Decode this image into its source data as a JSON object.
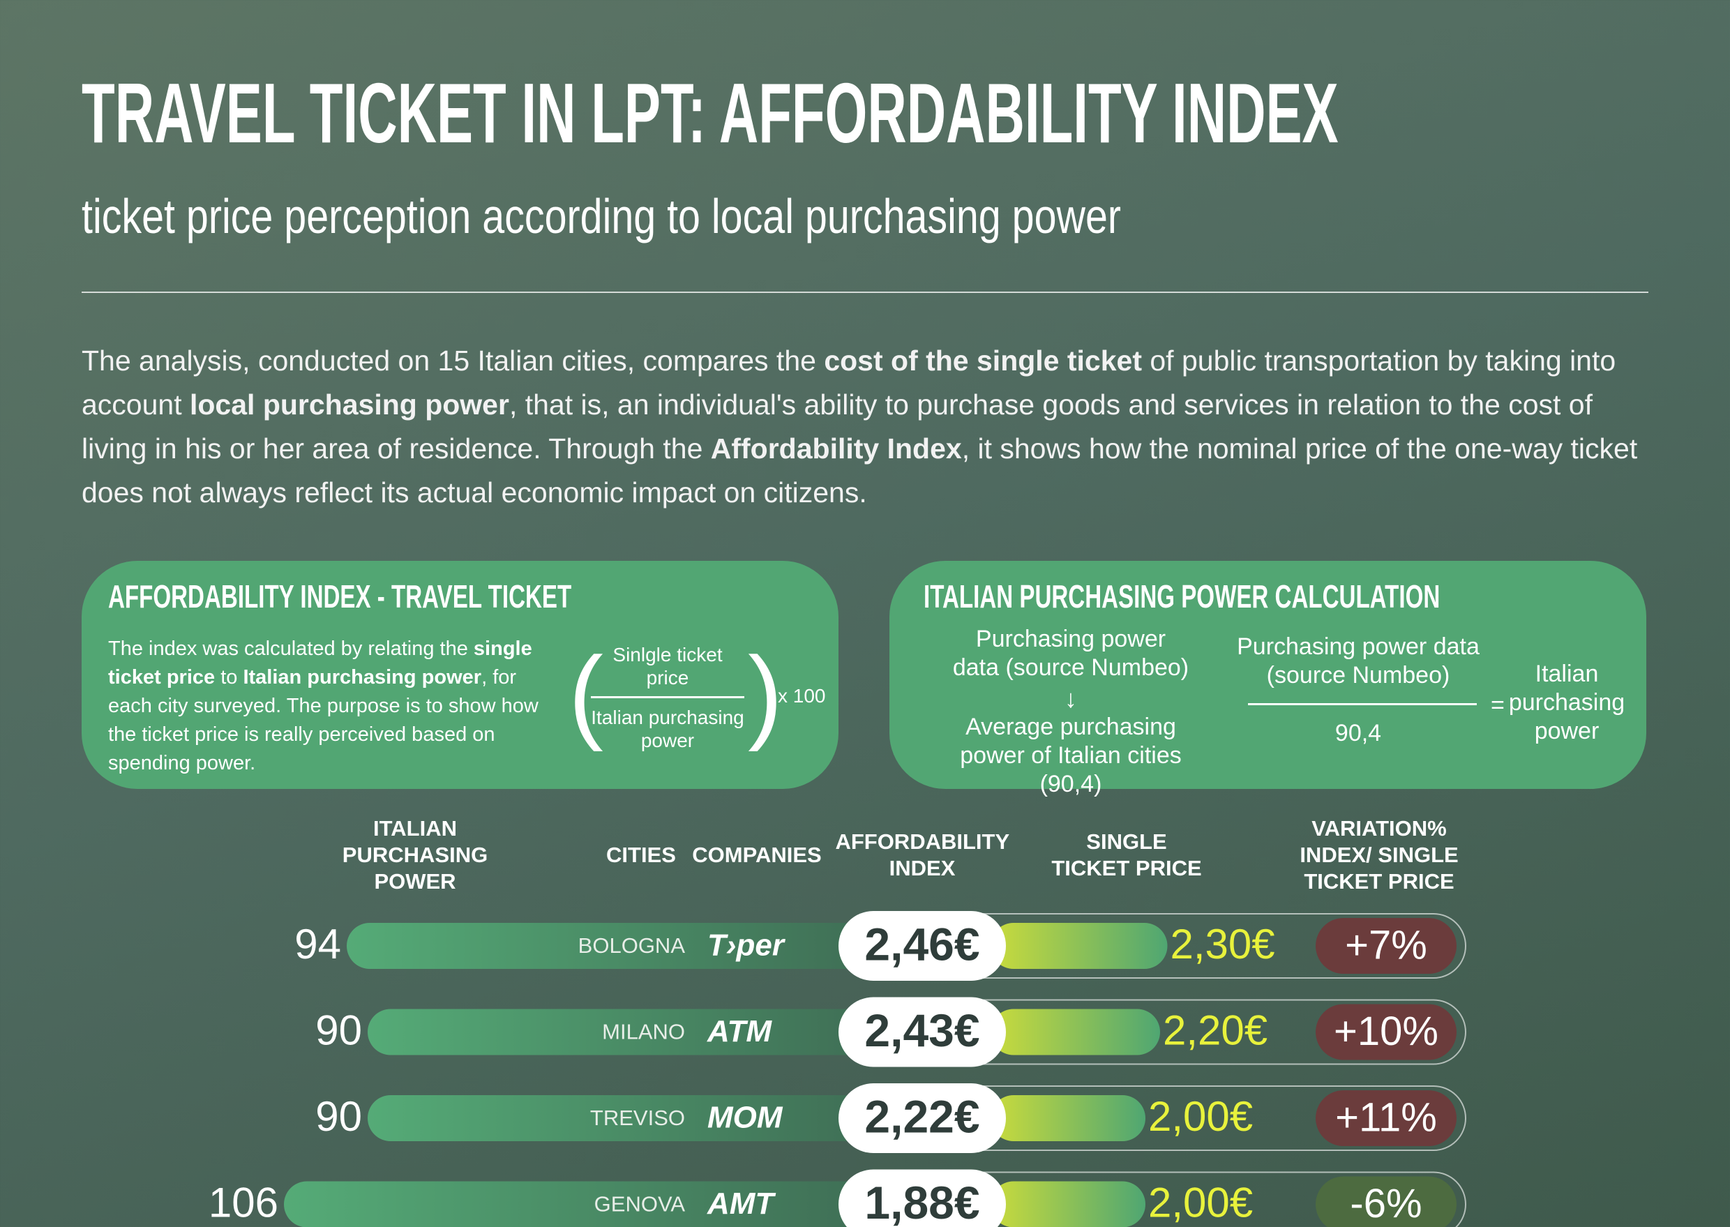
{
  "header": {
    "title": "TRAVEL TICKET IN LPT: AFFORDABILITY INDEX",
    "subtitle": "ticket price perception according to local purchasing power"
  },
  "intro": [
    {
      "text": "The analysis, conducted on 15 Italian cities, compares the ",
      "bold": false
    },
    {
      "text": "cost of the single ticket",
      "bold": true
    },
    {
      "text": " of public transportation by taking into account ",
      "bold": false
    },
    {
      "text": "local purchasing power",
      "bold": true
    },
    {
      "text": ", that is, an individual's ability to purchase goods and services in relation to the cost of living in his or her area of residence. Through the ",
      "bold": false
    },
    {
      "text": "Affordability Index",
      "bold": true
    },
    {
      "text": ", it shows how the nominal price of the one-way ticket does not always reflect its actual economic impact on citizens.",
      "bold": false
    }
  ],
  "boxes": {
    "index": {
      "title": "AFFORDABILITY INDEX - TRAVEL TICKET",
      "text": [
        {
          "text": "The index was calculated by relating the ",
          "bold": false
        },
        {
          "text": "single ticket price",
          "bold": true
        },
        {
          "text": " to ",
          "bold": false
        },
        {
          "text": "Italian purchasing power",
          "bold": true
        },
        {
          "text": ", for each city surveyed. The purpose is to show how the ticket price is really perceived based on spending power.",
          "bold": false
        }
      ],
      "numerator": "Sinlgle ticket price",
      "denominator": "Italian purchasing power",
      "multiplier": "x 100"
    },
    "power": {
      "title": "ITALIAN PURCHASING POWER CALCULATION",
      "source": "Purchasing power data (source Numbeo)",
      "average": "Average purchasing power of Italian cities (90,4)",
      "numerator": "Purchasing power data (source Numbeo)",
      "denominator": "90,4",
      "equals": "=",
      "result": "Italian purchasing power"
    }
  },
  "columns": [
    "ITALIAN PURCHASING POWER",
    "CITIES",
    "COMPANIES",
    "AFFORDABILITY INDEX",
    "SINGLE TICKET PRICE",
    "VARIATION% INDEX/ SINGLE TICKET PRICE"
  ],
  "rows": [
    {
      "power": 94,
      "city": "BOLOGNA",
      "company": "T›per",
      "index": 2.46,
      "index_label": "2,46€",
      "price": 2.3,
      "price_label": "2,30€",
      "variation": 7,
      "variation_label": "+7%"
    },
    {
      "power": 90,
      "city": "MILANO",
      "company": "ATM",
      "index": 2.43,
      "index_label": "2,43€",
      "price": 2.2,
      "price_label": "2,20€",
      "variation": 10,
      "variation_label": "+10%"
    },
    {
      "power": 90,
      "city": "TREVISO",
      "company": "MOM",
      "index": 2.22,
      "index_label": "2,22€",
      "price": 2.0,
      "price_label": "2,00€",
      "variation": 11,
      "variation_label": "+11%"
    },
    {
      "power": 106,
      "city": "GENOVA",
      "company": "AMT",
      "index": 1.88,
      "index_label": "1,88€",
      "price": 2.0,
      "price_label": "2,00€",
      "variation": -6,
      "variation_label": "-6%"
    }
  ]
}
